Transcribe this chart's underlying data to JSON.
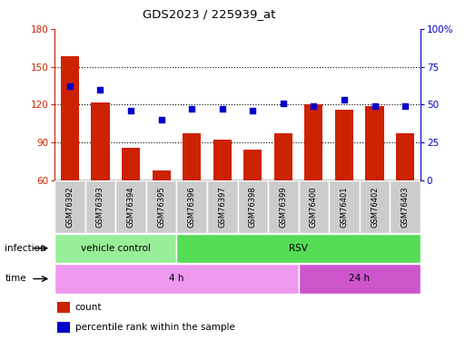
{
  "title": "GDS2023 / 225939_at",
  "samples": [
    "GSM76392",
    "GSM76393",
    "GSM76394",
    "GSM76395",
    "GSM76396",
    "GSM76397",
    "GSM76398",
    "GSM76399",
    "GSM76400",
    "GSM76401",
    "GSM76402",
    "GSM76403"
  ],
  "counts": [
    158,
    122,
    86,
    68,
    97,
    92,
    84,
    97,
    120,
    116,
    119,
    97
  ],
  "percentile": [
    62,
    60,
    46,
    40,
    47,
    47,
    46,
    51,
    49,
    53,
    49,
    49
  ],
  "ylim_left": [
    60,
    180
  ],
  "yticks_left": [
    60,
    90,
    120,
    150,
    180
  ],
  "ylim_right": [
    0,
    100
  ],
  "yticks_right": [
    0,
    25,
    50,
    75,
    100
  ],
  "bar_color": "#cc2200",
  "dot_color": "#0000cc",
  "background_color": "#ffffff",
  "infection_labels": [
    {
      "label": "vehicle control",
      "start": 0,
      "end": 4,
      "color": "#99ee99"
    },
    {
      "label": "RSV",
      "start": 4,
      "end": 12,
      "color": "#55dd55"
    }
  ],
  "time_labels": [
    {
      "label": "4 h",
      "start": 0,
      "end": 8,
      "color": "#ee99ee"
    },
    {
      "label": "24 h",
      "start": 8,
      "end": 12,
      "color": "#cc55cc"
    }
  ],
  "legend_count_label": "count",
  "legend_percentile_label": "percentile rank within the sample",
  "left_axis_color": "#cc2200",
  "right_axis_color": "#0000cc",
  "sample_box_color": "#cccccc",
  "bar_bottom": 60
}
